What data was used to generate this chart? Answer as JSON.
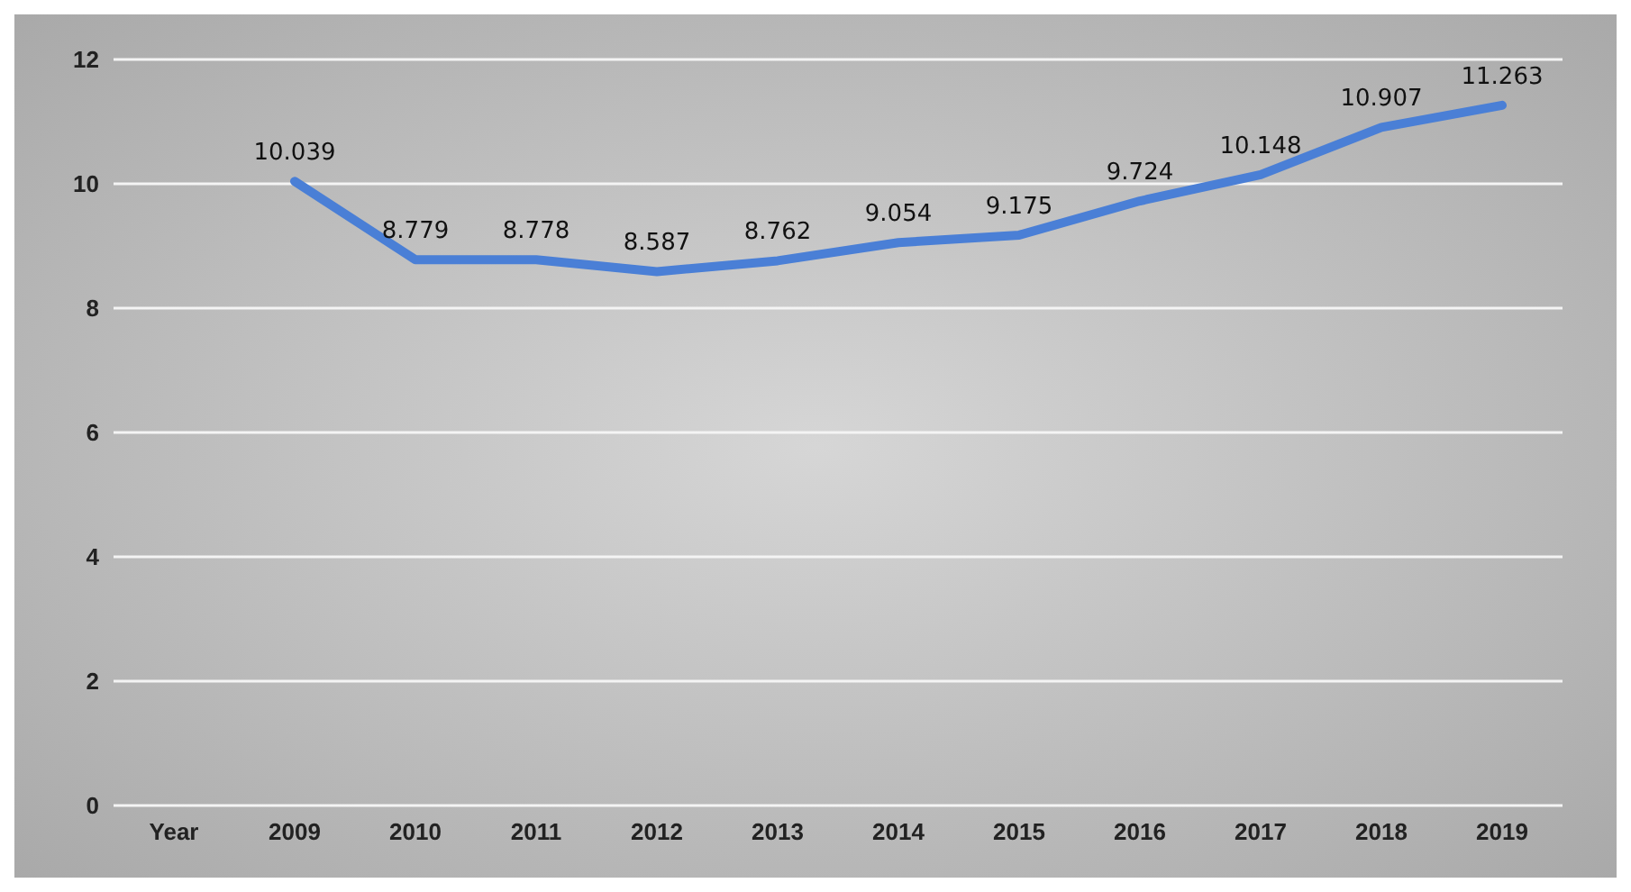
{
  "chart_data": {
    "type": "line",
    "categories": [
      "Year",
      "2009",
      "2010",
      "2011",
      "2012",
      "2013",
      "2014",
      "2015",
      "2016",
      "2017",
      "2018",
      "2019"
    ],
    "series": [
      {
        "color": "#4a7fd6",
        "values": [
          null,
          10.039,
          8.779,
          8.778,
          8.587,
          8.762,
          9.054,
          9.175,
          9.724,
          10.148,
          10.907,
          11.263
        ]
      }
    ],
    "ylim": [
      0,
      12
    ],
    "yticks": [
      0,
      2,
      4,
      6,
      8,
      10,
      12
    ],
    "grid": "y",
    "data_labels": true,
    "marker": "none",
    "line_style": "solid"
  }
}
